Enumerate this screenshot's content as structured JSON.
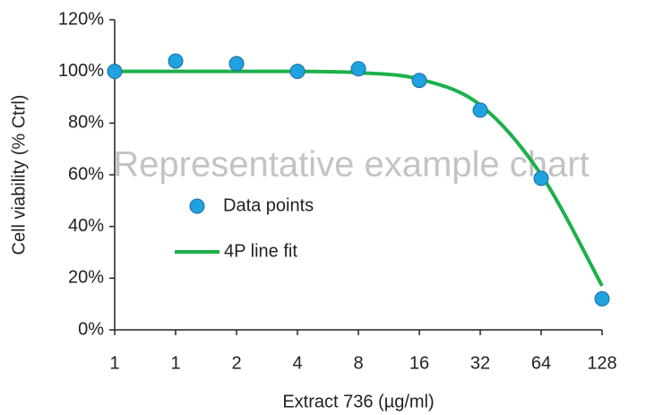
{
  "chart_data": {
    "type": "scatter-fit",
    "x_label": "Extract 736 (µg/ml)",
    "y_label": "Cell viability (% Ctrl)",
    "watermark": "Representative example chart",
    "categories": [
      "1",
      "1",
      "2",
      "4",
      "8",
      "16",
      "32",
      "64",
      "128"
    ],
    "series": [
      {
        "name": "Data points",
        "kind": "points",
        "color": "#1fa3e0",
        "edge_color": "#1a6aa0",
        "values": [
          100,
          104,
          103,
          100,
          101,
          96.5,
          85,
          58.6,
          12
        ]
      },
      {
        "name": "4P line fit",
        "kind": "line",
        "color": "#1db04b",
        "values": [
          100,
          100,
          100,
          100,
          99.5,
          97,
          87,
          60,
          17
        ]
      }
    ],
    "ylim": [
      0,
      120
    ],
    "yticks": [
      {
        "value": 0,
        "label": "0%"
      },
      {
        "value": 20,
        "label": "20%"
      },
      {
        "value": 40,
        "label": "40%"
      },
      {
        "value": 60,
        "label": "60%"
      },
      {
        "value": 80,
        "label": "80%"
      },
      {
        "value": 100,
        "label": "100%"
      },
      {
        "value": 120,
        "label": "120%"
      }
    ]
  }
}
